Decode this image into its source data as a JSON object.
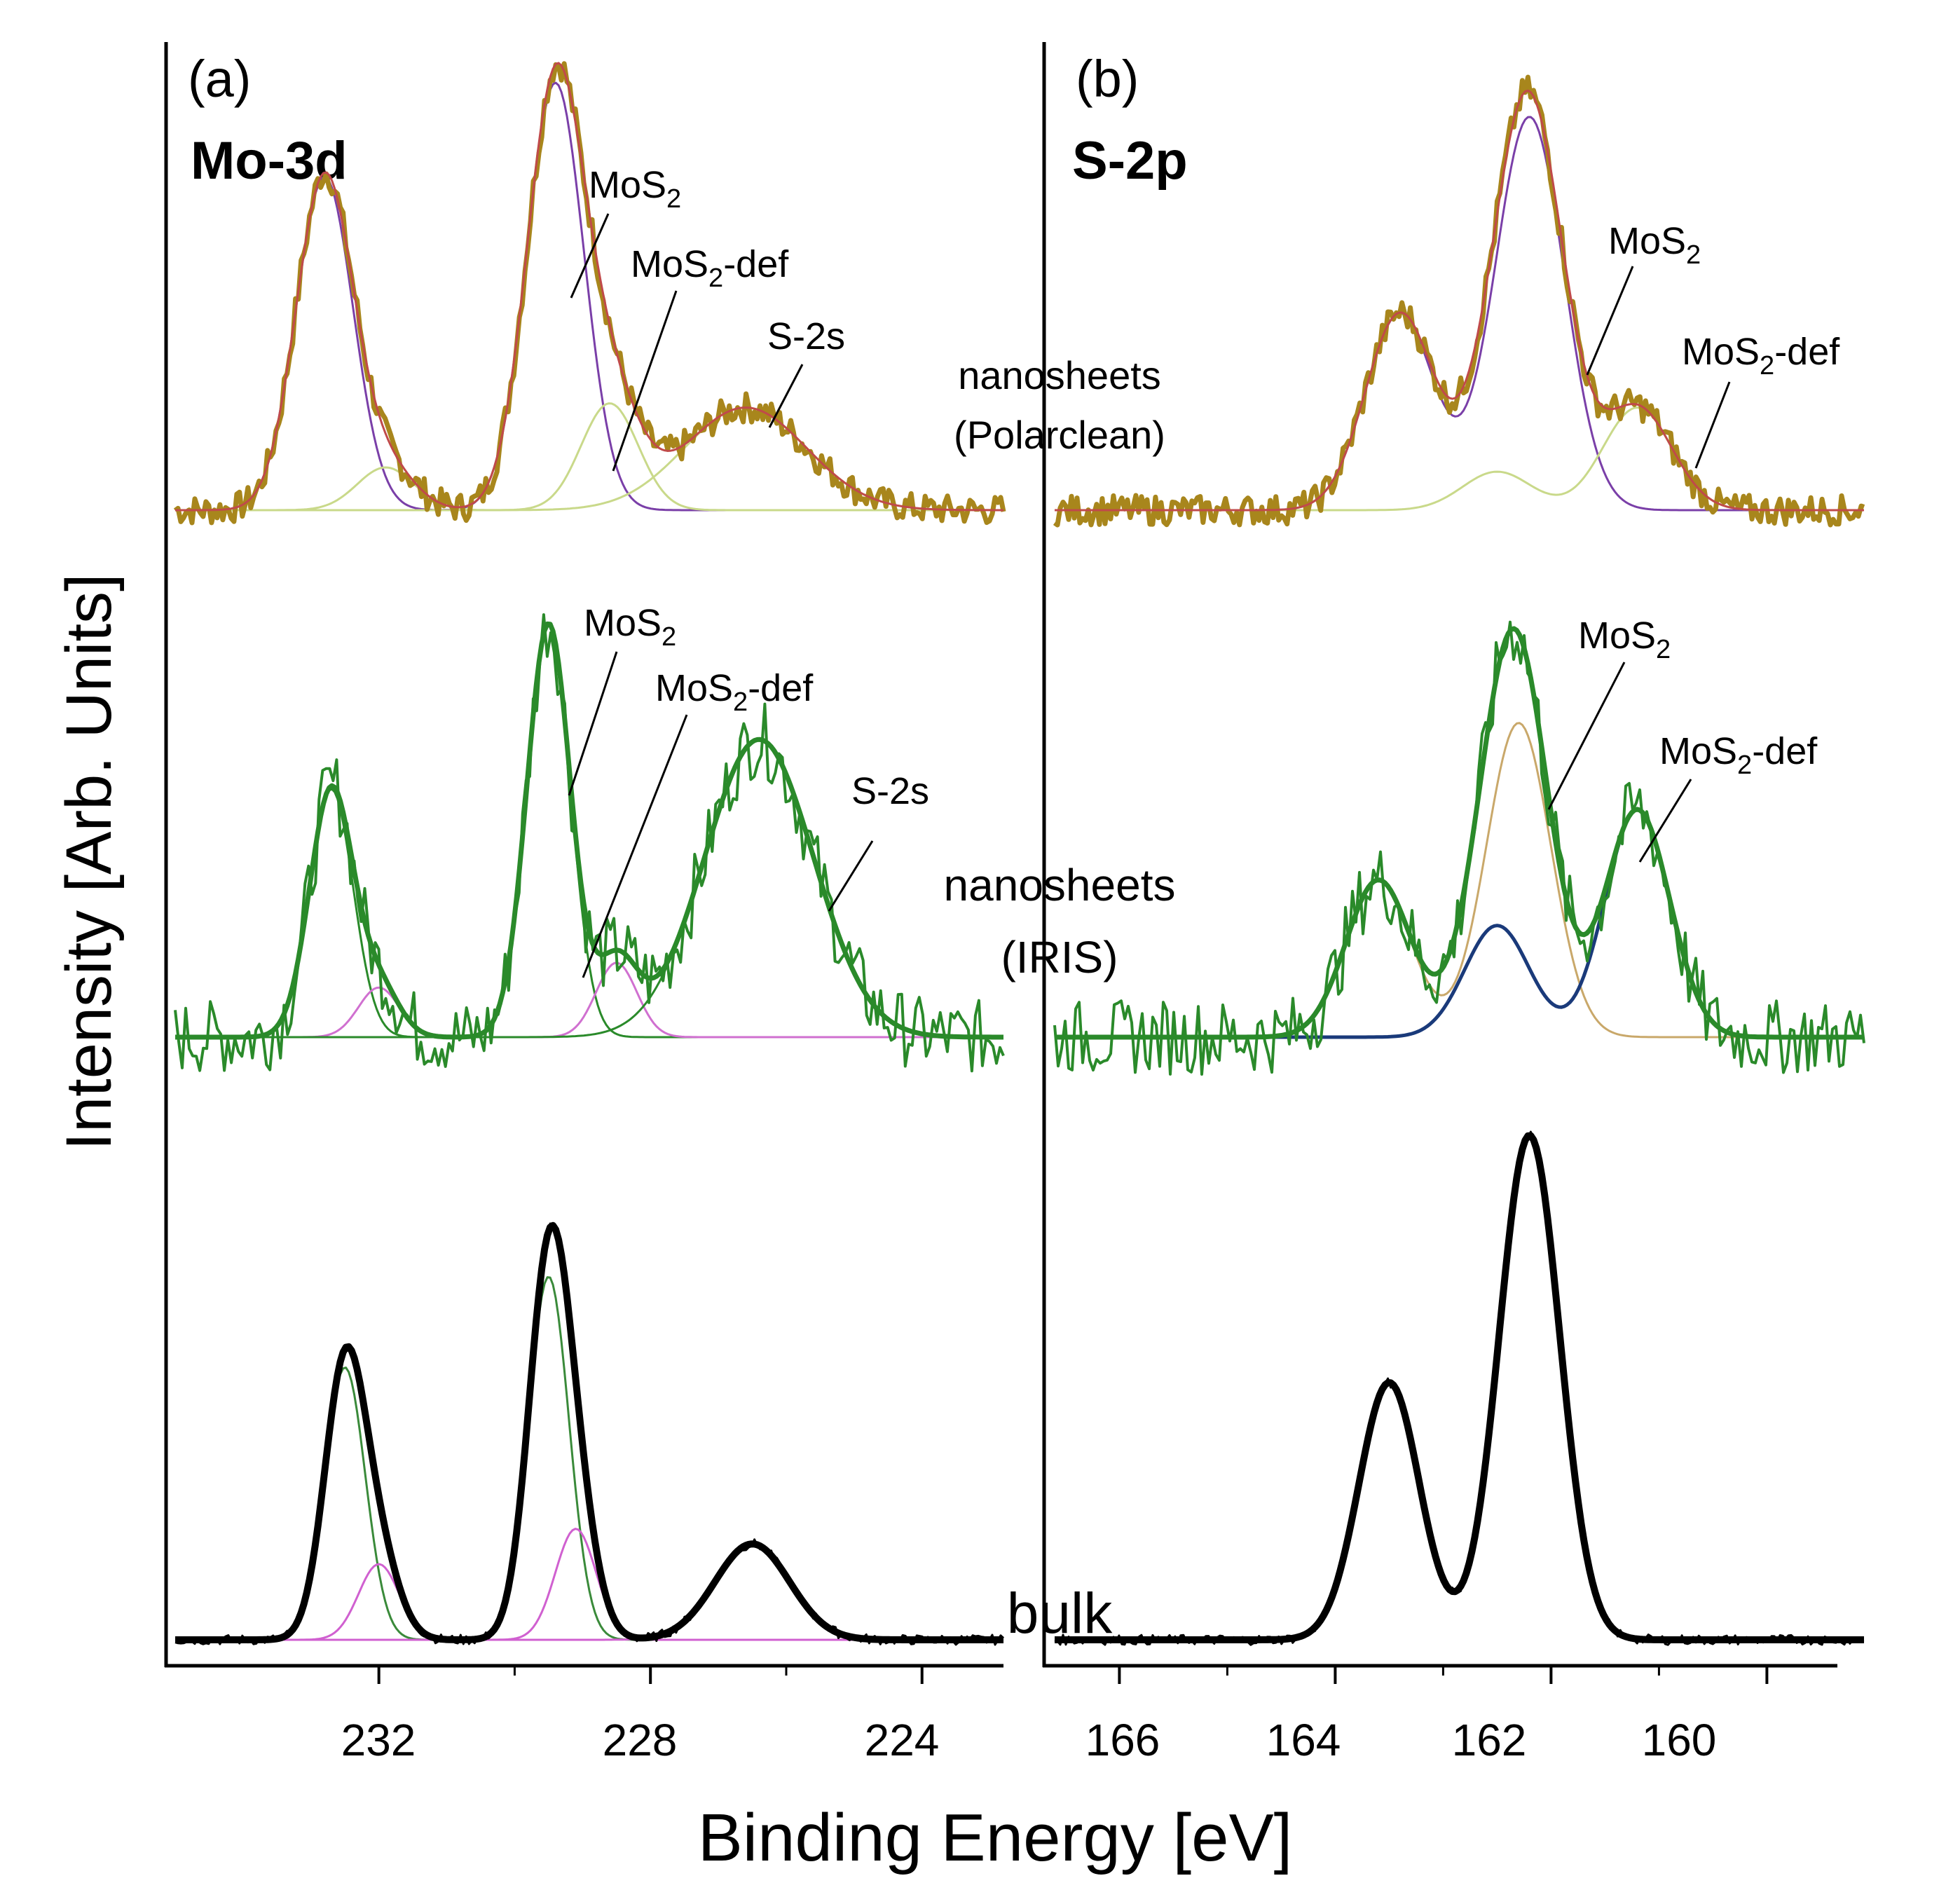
{
  "figure": {
    "ylabel": "Intensity [Arb. Units]",
    "xlabel": "Binding Energy [eV]",
    "sample_labels": {
      "polarclean_line1": "nanosheets",
      "polarclean_line2": "(Polarclean)",
      "iris_line1": "nanosheets",
      "iris_line2": "(IRIS)",
      "bulk": "bulk"
    }
  },
  "panels": {
    "a": {
      "letter": "(a)",
      "title": "Mo-3d"
    },
    "b": {
      "letter": "(b)",
      "title": "S-2p"
    }
  },
  "annotations": {
    "mos2": "MoS",
    "sub": "2",
    "def_suffix": "-def",
    "s2s": "S-2s"
  },
  "colors": {
    "polarclean_data": "#a8861c",
    "polarclean_env": "#c04a4a",
    "polarclean_mos2": "#7a3fa8",
    "polarclean_def": "#c9d98a",
    "iris_data": "#2a8a2a",
    "iris_mo_def": "#d070d0",
    "iris_s_mos2": "#c9a86a",
    "iris_s_def": "#1a3a7a",
    "bulk_data": "#000000",
    "bulk_fit": "#3a8a3a",
    "bulk_def": "#d060d0",
    "bulk_s": "#2a5a2a"
  },
  "chart_data": [
    {
      "type": "line",
      "panel": "a",
      "title": "Mo-3d",
      "xlabel": "Binding Energy [eV]",
      "ylabel": "Intensity [Arb. Units]",
      "xlim": [
        235.0,
        222.8
      ],
      "x_reversed": true,
      "ticks": [
        232,
        228,
        224
      ],
      "series": [
        {
          "name": "nanosheets (Polarclean)",
          "components": [
            {
              "label": "MoS2",
              "peaks": [
                {
                  "center": 232.8,
                  "height": 0.78,
                  "width": 0.42
                },
                {
                  "center": 229.4,
                  "height": 1.0,
                  "width": 0.42
                }
              ]
            },
            {
              "label": "MoS2-def",
              "peaks": [
                {
                  "center": 231.9,
                  "height": 0.1,
                  "width": 0.42
                },
                {
                  "center": 228.6,
                  "height": 0.25,
                  "width": 0.42
                }
              ]
            },
            {
              "label": "S-2s",
              "peaks": [
                {
                  "center": 226.6,
                  "height": 0.24,
                  "width": 0.9
                }
              ]
            }
          ]
        },
        {
          "name": "nanosheets (IRIS)",
          "components": [
            {
              "label": "MoS2",
              "peaks": [
                {
                  "center": 232.7,
                  "height": 0.6,
                  "width": 0.32
                },
                {
                  "center": 229.5,
                  "height": 1.0,
                  "width": 0.32
                }
              ]
            },
            {
              "label": "MoS2-def",
              "peaks": [
                {
                  "center": 232.0,
                  "height": 0.12,
                  "width": 0.3
                },
                {
                  "center": 228.5,
                  "height": 0.18,
                  "width": 0.3
                }
              ]
            },
            {
              "label": "S-2s",
              "peaks": [
                {
                  "center": 226.4,
                  "height": 0.72,
                  "width": 0.8
                }
              ]
            }
          ]
        },
        {
          "name": "bulk",
          "components": [
            {
              "label": "MoS2",
              "peaks": [
                {
                  "center": 232.5,
                  "height": 0.54,
                  "width": 0.3
                },
                {
                  "center": 229.5,
                  "height": 0.72,
                  "width": 0.3
                }
              ]
            },
            {
              "label": "MoS2-def",
              "peaks": [
                {
                  "center": 232.0,
                  "height": 0.15,
                  "width": 0.3
                },
                {
                  "center": 229.1,
                  "height": 0.22,
                  "width": 0.3
                }
              ]
            },
            {
              "label": "S-2s",
              "peaks": [
                {
                  "center": 226.5,
                  "height": 0.19,
                  "width": 0.55
                }
              ]
            }
          ]
        }
      ]
    },
    {
      "type": "line",
      "panel": "b",
      "title": "S-2p",
      "xlabel": "Binding Energy [eV]",
      "ylabel": "Intensity [Arb. Units]",
      "xlim": [
        166.6,
        159.1
      ],
      "x_reversed": true,
      "ticks": [
        166,
        164,
        162,
        160
      ],
      "series": [
        {
          "name": "nanosheets (Polarclean)",
          "components": [
            {
              "label": "MoS2",
              "peaks": [
                {
                  "center": 163.4,
                  "height": 0.46,
                  "width": 0.32
                },
                {
                  "center": 162.2,
                  "height": 0.92,
                  "width": 0.32
                }
              ]
            },
            {
              "label": "MoS2-def",
              "peaks": [
                {
                  "center": 162.5,
                  "height": 0.09,
                  "width": 0.32
                },
                {
                  "center": 161.2,
                  "height": 0.24,
                  "width": 0.32
                }
              ]
            }
          ]
        },
        {
          "name": "nanosheets (IRIS)",
          "components": [
            {
              "label": "MoS2",
              "peaks": [
                {
                  "center": 163.6,
                  "height": 0.38,
                  "width": 0.3
                },
                {
                  "center": 162.3,
                  "height": 0.76,
                  "width": 0.3
                }
              ]
            },
            {
              "label": "MoS2-def",
              "peaks": [
                {
                  "center": 162.5,
                  "height": 0.27,
                  "width": 0.3
                },
                {
                  "center": 161.2,
                  "height": 0.55,
                  "width": 0.3
                }
              ]
            }
          ]
        },
        {
          "name": "bulk",
          "components": [
            {
              "label": "MoS2",
              "peaks": [
                {
                  "center": 163.5,
                  "height": 0.51,
                  "width": 0.28
                },
                {
                  "center": 162.2,
                  "height": 1.0,
                  "width": 0.28
                }
              ]
            }
          ]
        }
      ]
    }
  ]
}
